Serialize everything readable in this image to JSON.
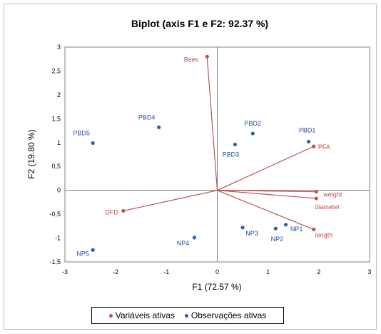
{
  "colors": {
    "variables": "#c0504d",
    "observations": "#2f5ea8",
    "axis": "#7f7f7f"
  },
  "chart_data": {
    "type": "scatter",
    "title": "Biplot (axis F1 e F2: 92.37 %)",
    "xlabel": "F1 (72.57 %)",
    "ylabel": "F2 (19.80 %)",
    "xlim": [
      -3,
      3
    ],
    "ylim": [
      -1.5,
      3
    ],
    "xticks": [
      "-3",
      "-2",
      "-1",
      "0",
      "1",
      "2",
      "3"
    ],
    "yticks": [
      "3",
      "2,5",
      "2",
      "1,5",
      "1",
      "0,5",
      "0",
      "-0,5",
      "-1",
      "-1,5"
    ],
    "grid": false,
    "legend_position": "bottom",
    "legend": [
      "Variáveis ativas",
      "Observações ativas"
    ],
    "series": [
      {
        "name": "Variáveis ativas",
        "points": [
          {
            "label": "Bees",
            "x": -0.2,
            "y": 2.8
          },
          {
            "label": "PFA",
            "x": 1.9,
            "y": 0.92
          },
          {
            "label": "weight",
            "x": 1.95,
            "y": -0.03
          },
          {
            "label": "diameter",
            "x": 1.95,
            "y": -0.17
          },
          {
            "label": "length",
            "x": 1.9,
            "y": -0.82
          },
          {
            "label": "DFD",
            "x": -1.85,
            "y": -0.43
          }
        ]
      },
      {
        "name": "Observações ativas",
        "points": [
          {
            "label": "PBD1",
            "x": 1.8,
            "y": 1.02
          },
          {
            "label": "PBD2",
            "x": 0.7,
            "y": 1.19
          },
          {
            "label": "PBD3",
            "x": 0.35,
            "y": 0.96
          },
          {
            "label": "PBD4",
            "x": -1.15,
            "y": 1.32
          },
          {
            "label": "PBD5",
            "x": -2.45,
            "y": 0.99
          },
          {
            "label": "NP1",
            "x": 1.35,
            "y": -0.72
          },
          {
            "label": "NP2",
            "x": 1.15,
            "y": -0.8
          },
          {
            "label": "NP3",
            "x": 0.5,
            "y": -0.78
          },
          {
            "label": "NP4",
            "x": -0.45,
            "y": -0.99
          },
          {
            "label": "NP5",
            "x": -2.45,
            "y": -1.25
          }
        ]
      }
    ]
  }
}
